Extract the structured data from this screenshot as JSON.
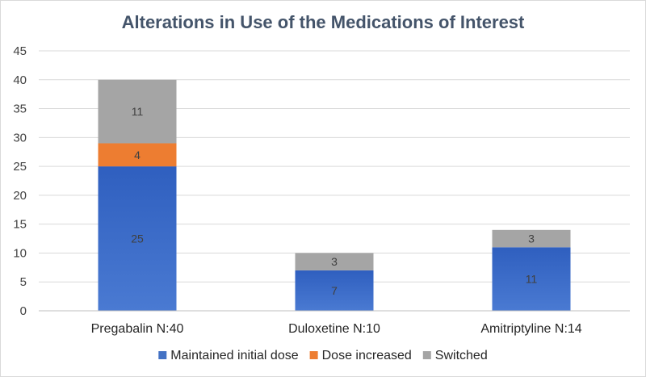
{
  "chart_data": {
    "type": "bar",
    "stacked": true,
    "title": "Alterations in Use of the Medications of Interest",
    "xlabel": "",
    "ylabel": "",
    "categories": [
      "Pregabalin N:40",
      "Duloxetine N:10",
      "Amitriptyline N:14"
    ],
    "ylim": [
      0,
      45
    ],
    "yticks": [
      0,
      5,
      10,
      15,
      20,
      25,
      30,
      35,
      40,
      45
    ],
    "grid": true,
    "legend_position": "bottom",
    "series": [
      {
        "name": "Maintained initial dose",
        "color": "#4472c4",
        "values": [
          25,
          7,
          11
        ],
        "labels": [
          "25",
          "7",
          "11"
        ]
      },
      {
        "name": "Dose increased",
        "color": "#ed7d31",
        "values": [
          4,
          0,
          0
        ],
        "labels": [
          "4",
          "",
          ""
        ]
      },
      {
        "name": "Switched",
        "color": "#a5a5a5",
        "values": [
          11,
          3,
          3
        ],
        "labels": [
          "11",
          "3",
          "3"
        ]
      }
    ]
  }
}
